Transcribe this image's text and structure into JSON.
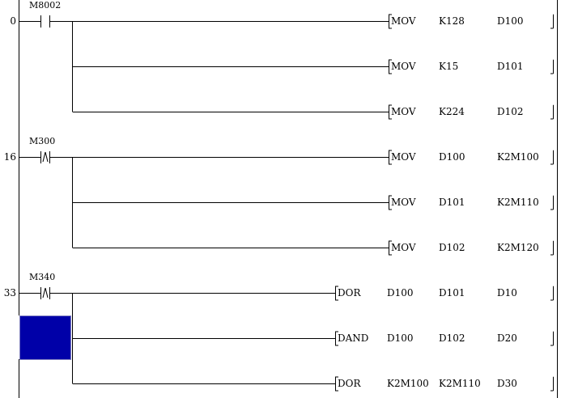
{
  "colors": {
    "cursor": "#0000a8",
    "line": "#000000"
  },
  "rungs": [
    {
      "step": "0",
      "contact": {
        "device": "M8002",
        "type": "normally-open"
      },
      "outputs": [
        {
          "op": "MOV",
          "a": "K128",
          "b": "D100"
        },
        {
          "op": "MOV",
          "a": "K15",
          "b": "D101"
        },
        {
          "op": "MOV",
          "a": "K224",
          "b": "D102"
        }
      ]
    },
    {
      "step": "16",
      "contact": {
        "device": "M300",
        "type": "rising-edge"
      },
      "outputs": [
        {
          "op": "MOV",
          "a": "D100",
          "b": "K2M100"
        },
        {
          "op": "MOV",
          "a": "D101",
          "b": "K2M110"
        },
        {
          "op": "MOV",
          "a": "D102",
          "b": "K2M120"
        }
      ]
    },
    {
      "step": "33",
      "contact": {
        "device": "M340",
        "type": "rising-edge"
      },
      "outputs": [
        {
          "op": "DOR",
          "a": "D100",
          "b": "D101",
          "c": "D10"
        },
        {
          "op": "DAND",
          "a": "D100",
          "b": "D102",
          "c": "D20"
        },
        {
          "op": "DOR",
          "a": "K2M100",
          "b": "K2M110",
          "c": "D30"
        }
      ]
    }
  ]
}
